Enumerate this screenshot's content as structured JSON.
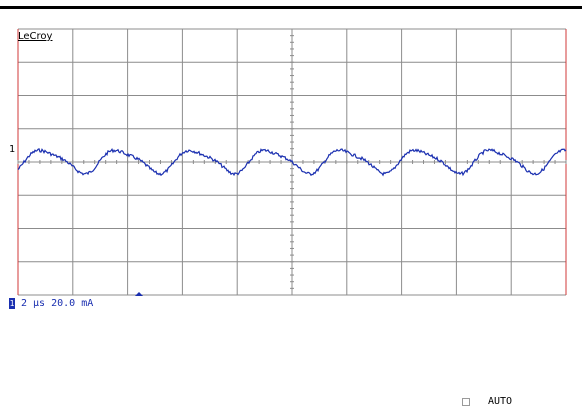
{
  "scope": {
    "brand": "LeCroy",
    "channel_marker": "1",
    "trace_color": "#1a2fb0",
    "grid_color": "#8c8c8c",
    "edge_color": "#d23a3a"
  },
  "status": {
    "channel_badge": "1",
    "timebase": "2 µs",
    "vertical_scale": "20.0 mA"
  },
  "trigger": {
    "mode_label": "AUTO"
  }
}
